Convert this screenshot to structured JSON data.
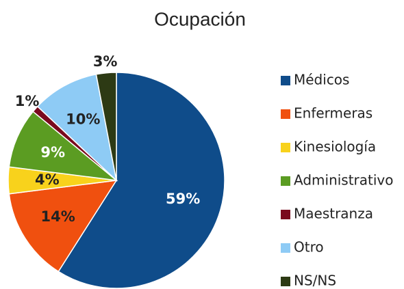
{
  "chart_data": {
    "type": "pie",
    "title": "Ocupación",
    "categories": [
      "Médicos",
      "Enfermeras",
      "Kinesiología",
      "Administrativo",
      "Maestranza",
      "Otro",
      "NS/NS"
    ],
    "values": [
      59,
      14,
      4,
      9,
      1,
      10,
      3
    ],
    "value_labels": [
      "59%",
      "14%",
      "4%",
      "9%",
      "1%",
      "10%",
      "3%"
    ],
    "colors": [
      "#0f4c8a",
      "#f0500f",
      "#f8d21c",
      "#5b9c22",
      "#7a0a1e",
      "#8ecbf5",
      "#2d3a14"
    ],
    "label_colors": [
      "#ffffff",
      "#222222",
      "#222222",
      "#ffffff",
      "#222222",
      "#222222",
      "#222222"
    ],
    "legend": "right"
  }
}
